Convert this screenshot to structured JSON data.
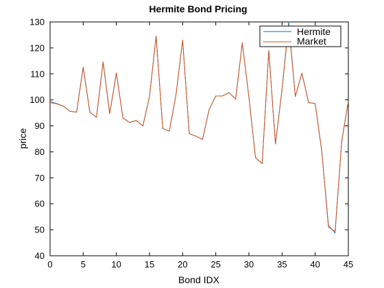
{
  "chart_data": {
    "type": "line",
    "title": "Hermite Bond Pricing",
    "xlabel": "Bond IDX",
    "ylabel": "price",
    "xlim": [
      0,
      45
    ],
    "ylim": [
      40,
      130
    ],
    "xticks": [
      0,
      5,
      10,
      15,
      20,
      25,
      30,
      35,
      40,
      45
    ],
    "yticks": [
      40,
      50,
      60,
      70,
      80,
      90,
      100,
      110,
      120,
      130
    ],
    "grid": false,
    "legend": "top-right",
    "x": [
      0,
      1,
      2,
      3,
      4,
      5,
      6,
      7,
      8,
      9,
      10,
      11,
      12,
      13,
      14,
      15,
      16,
      17,
      18,
      19,
      20,
      21,
      22,
      23,
      24,
      25,
      26,
      27,
      28,
      29,
      30,
      31,
      32,
      33,
      34,
      35,
      36,
      37,
      38,
      39,
      40,
      41,
      42,
      43,
      44,
      45
    ],
    "series": [
      {
        "name": "Hermite",
        "color": "#0072BD",
        "values": [
          99.3,
          98.6,
          97.6,
          95.6,
          95.3,
          112.6,
          95.3,
          93.3,
          114.6,
          94.7,
          110.3,
          93.0,
          91.3,
          92.1,
          89.9,
          101.3,
          124.6,
          89.0,
          88.0,
          102.0,
          123.0,
          87.0,
          86.0,
          84.8,
          96.3,
          101.5,
          101.5,
          102.8,
          100.3,
          122.0,
          101.0,
          77.7,
          75.5,
          119.0,
          83.0,
          104.0,
          130.0,
          101.3,
          110.3,
          99.0,
          98.6,
          80.0,
          51.7,
          48.8,
          84.0,
          99.6
        ]
      },
      {
        "name": "Market",
        "color": "#D95319",
        "values": [
          99.0,
          98.5,
          97.6,
          95.6,
          95.3,
          112.6,
          95.3,
          93.3,
          114.6,
          94.7,
          110.3,
          93.0,
          91.3,
          92.1,
          89.9,
          101.3,
          124.6,
          89.0,
          88.0,
          102.0,
          123.0,
          87.0,
          86.0,
          84.8,
          96.3,
          101.5,
          101.5,
          102.8,
          100.3,
          122.0,
          101.0,
          77.7,
          75.5,
          119.0,
          83.0,
          104.0,
          129.0,
          101.3,
          110.3,
          99.0,
          98.6,
          80.0,
          51.0,
          49.5,
          84.0,
          99.6
        ]
      }
    ]
  }
}
